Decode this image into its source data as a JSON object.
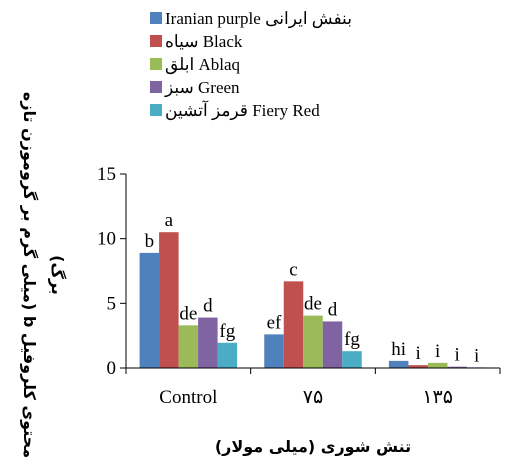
{
  "chart_data": {
    "type": "bar",
    "title": "",
    "xlabel": "تنش شوری (میلی مولار)",
    "ylabel_line1": "محتوی کلروفیل b (میلی گرم بر گروموزن تازه",
    "ylabel_line2": "برگ)",
    "categories": [
      "Control",
      "۷۵",
      "۱۳۵"
    ],
    "ylim": [
      0,
      15
    ],
    "yticks": [
      0,
      5,
      10,
      15
    ],
    "grid": false,
    "legend_position": "top",
    "series": [
      {
        "name": "Iranian purple بنفش ایرانی",
        "color": "#4f81bd",
        "values": [
          8.9,
          2.6,
          0.55
        ],
        "labels": [
          "b",
          "ef",
          "hi"
        ]
      },
      {
        "name": "سیاه Black",
        "color": "#c0504d",
        "values": [
          10.5,
          6.7,
          0.22
        ],
        "labels": [
          "a",
          "c",
          "i"
        ]
      },
      {
        "name": "ابلق Ablaq",
        "color": "#9bbb59",
        "values": [
          3.3,
          4.05,
          0.4
        ],
        "labels": [
          "de",
          "de",
          "i"
        ]
      },
      {
        "name": "سبز Green",
        "color": "#8064a2",
        "values": [
          3.9,
          3.6,
          0.1
        ],
        "labels": [
          "d",
          "d",
          "i"
        ]
      },
      {
        "name": "قرمز آتشین Fiery Red",
        "color": "#4bacc6",
        "values": [
          1.95,
          1.3,
          0.05
        ],
        "labels": [
          "fg",
          "fg",
          "i"
        ]
      }
    ]
  }
}
